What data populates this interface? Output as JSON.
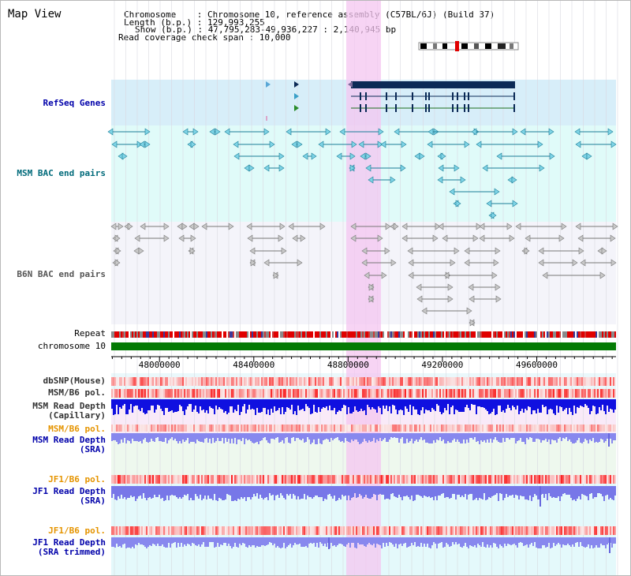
{
  "title": "Map View",
  "info": {
    "line1": "Chromosome    : Chromosome 10, reference assembly (C57BL/6J) (Build 37)",
    "line2": "Length (b.p.) : 129,993,255",
    "line3": "Show (b.p.) : 47,795,283-49,936,227 : 2,140,945 bp",
    "line4": "Read coverage check span : 10,000"
  },
  "tracks": {
    "refseq": "RefSeq Genes",
    "msm_bac": "MSM BAC end pairs",
    "b6n_bac": "B6N BAC end pairs",
    "repeat": "Repeat",
    "chromosome": "chromosome 10",
    "dbsnp": "dbSNP(Mouse)",
    "msm_b6_pol_1": "MSM/B6 pol.",
    "msm_read_cap_1": "MSM Read Depth",
    "msm_read_cap_2": "(Capillary)",
    "msm_b6_pol_2": "MSM/B6 pol.",
    "msm_read_sra_1": "MSM Read Depth",
    "msm_read_sra_2": "(SRA)",
    "jf1_b6_pol_1": "JF1/B6 pol.",
    "jf1_read_sra_1": "JF1 Read Depth",
    "jf1_read_sra_2": "(SRA)",
    "jf1_b6_pol_2": "JF1/B6 pol.",
    "jf1_read_trim_1": "JF1 Read Depth",
    "jf1_read_trim_2": "(SRA trimmed)"
  },
  "axis": {
    "ticks": [
      "48000000",
      "48400000",
      "48800000",
      "49200000",
      "49600000"
    ],
    "range": [
      47795283,
      49936227
    ]
  },
  "colors": {
    "refseq_bg": "#d7eef9",
    "msm_bac_bg": "#e0fbf9",
    "b6n_bac_bg": "#f4f4fa",
    "highlight": "#f6d4f2",
    "gene": "#0b2a56",
    "msm_feature": "#1a7d98",
    "b6n_feature": "#777777",
    "chromosome_bar": "#047a04",
    "msm_depth": "#1010e0",
    "sra_depth": "#8888ee",
    "label_blue": "#00008b",
    "label_orange": "#e59400",
    "label_teal": "#006a7a"
  }
}
